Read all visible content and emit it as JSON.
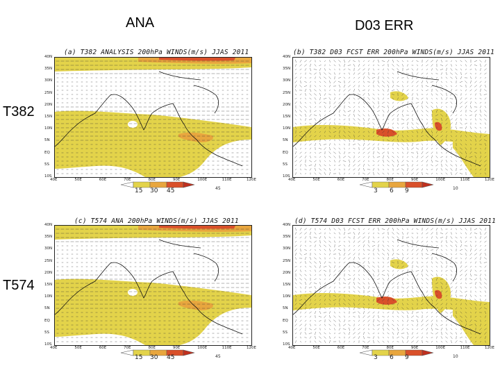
{
  "columns": [
    "ANA",
    "D03 ERR"
  ],
  "rows": [
    "T382",
    "T574"
  ],
  "panels": [
    {
      "id": "a",
      "title": "(a) T382 ANALYSIS 200hPa WINDS(m/s) JJAS 2011",
      "colorbar": [
        "15",
        "30",
        "45"
      ],
      "ref_vector": "45",
      "colors": [
        "#e3d34a",
        "#e8a63e",
        "#d9502a"
      ]
    },
    {
      "id": "b",
      "title": "(b) T382 D03 FCST ERR 200hPa WINDS(m/s) JJAS 2011",
      "colorbar": [
        "3",
        "6",
        "9"
      ],
      "ref_vector": "10",
      "colors": [
        "#e3d34a",
        "#e8a63e",
        "#d9502a"
      ]
    },
    {
      "id": "c",
      "title": "(c) T574 ANA 200hPa WINDS(m/s) JJAS 2011",
      "colorbar": [
        "15",
        "30",
        "45"
      ],
      "ref_vector": "45",
      "colors": [
        "#e3d34a",
        "#e8a63e",
        "#d9502a"
      ]
    },
    {
      "id": "d",
      "title": "(d) T574 D03 FCST ERR 200hPa WINDS(m/s) JJAS 2011",
      "colorbar": [
        "3",
        "6",
        "9"
      ],
      "ref_vector": "10",
      "colors": [
        "#e3d34a",
        "#e8a63e",
        "#d9502a"
      ]
    }
  ],
  "lat_labels": [
    "40N",
    "35N",
    "30N",
    "25N",
    "20N",
    "15N",
    "10N",
    "5N",
    "EQ",
    "5S",
    "10S"
  ],
  "lon_labels": [
    "40E",
    "50E",
    "60E",
    "70E",
    "80E",
    "90E",
    "100E",
    "110E",
    "120E"
  ]
}
